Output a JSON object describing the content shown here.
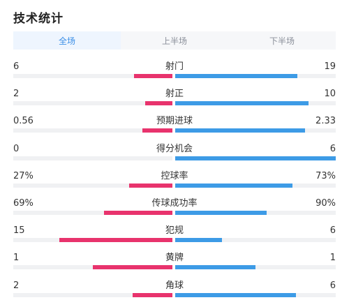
{
  "header": {
    "title": "技术统计"
  },
  "tabs": [
    {
      "label": "全场",
      "active": true
    },
    {
      "label": "上半场",
      "active": false
    },
    {
      "label": "下半场",
      "active": false
    }
  ],
  "colors": {
    "home": "#e8336d",
    "away": "#3d9be6",
    "accent": "#3a8ee6"
  },
  "stats": [
    {
      "label": "射门",
      "home": "6",
      "away": "19",
      "home_share": 0.24,
      "away_share": 0.76
    },
    {
      "label": "射正",
      "home": "2",
      "away": "10",
      "home_share": 0.17,
      "away_share": 0.83
    },
    {
      "label": "预期进球",
      "home": "0.56",
      "away": "2.33",
      "home_share": 0.19,
      "away_share": 0.81
    },
    {
      "label": "得分机会",
      "home": "0",
      "away": "6",
      "home_share": 0.0,
      "away_share": 1.0
    },
    {
      "label": "控球率",
      "home": "27%",
      "away": "73%",
      "home_share": 0.27,
      "away_share": 0.73
    },
    {
      "label": "传球成功率",
      "home": "69%",
      "away": "90%",
      "home_share": 0.43,
      "away_share": 0.57
    },
    {
      "label": "犯规",
      "home": "15",
      "away": "6",
      "home_share": 0.71,
      "away_share": 0.29
    },
    {
      "label": "黄牌",
      "home": "1",
      "away": "1",
      "home_share": 0.5,
      "away_share": 0.5
    },
    {
      "label": "角球",
      "home": "2",
      "away": "6",
      "home_share": 0.25,
      "away_share": 0.75
    }
  ]
}
